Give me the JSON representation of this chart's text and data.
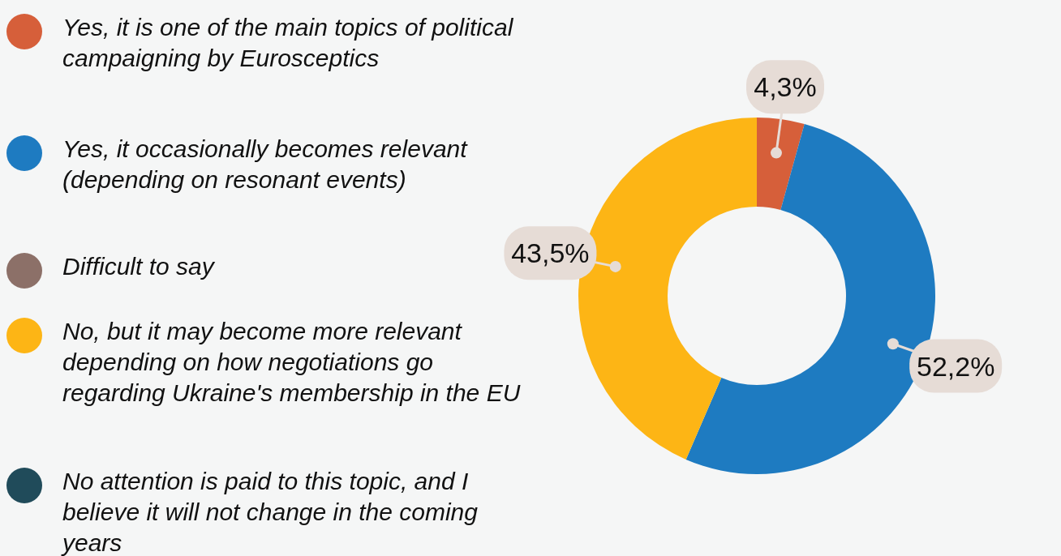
{
  "chart_data": {
    "type": "donut",
    "categories": [
      "Yes, it is one of the main topics of political campaigning by Eurosceptics",
      "Yes, it occasionally becomes relevant (depending on resonant events)",
      "Difficult to say",
      "No, but it may become more relevant depending on how negotiations go regarding Ukraine's membership in the EU",
      "No attention is paid to this topic, and I believe it will not change in the coming years"
    ],
    "values": [
      4.3,
      52.2,
      0,
      43.5,
      0
    ],
    "value_labels": [
      "4,3%",
      "52,2%",
      null,
      "43,5%",
      null
    ],
    "colors": [
      "#d65f3a",
      "#1e7bc1",
      "#8c7068",
      "#fdb515",
      "#204b5a"
    ],
    "legend": "left"
  }
}
